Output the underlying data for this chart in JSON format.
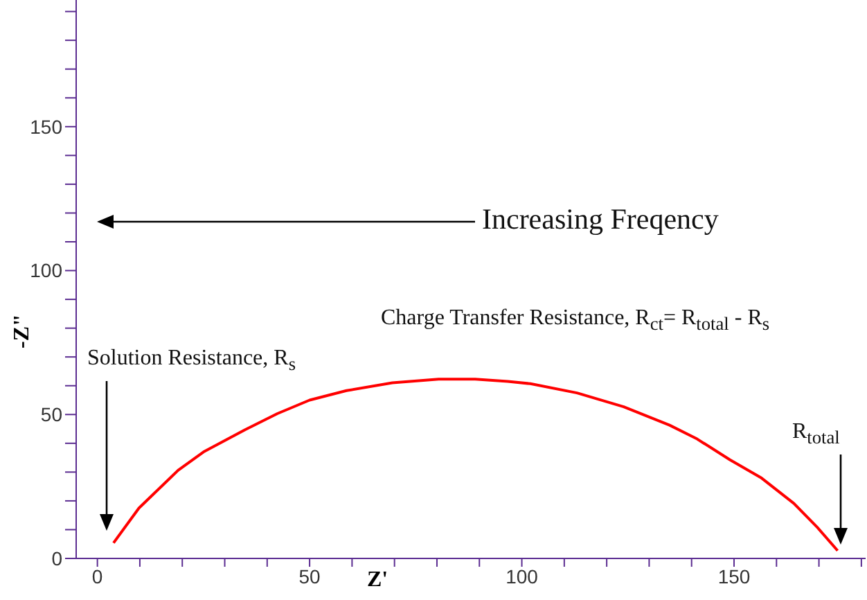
{
  "chart_data": {
    "type": "line",
    "xlabel": "Z'",
    "ylabel": "-Z\"",
    "x": [
      3.8,
      9.8,
      19,
      25,
      34.8,
      42.4,
      50,
      58.7,
      69.5,
      80.4,
      89,
      96.7,
      102,
      113,
      124,
      134.8,
      141.3,
      149,
      156.5,
      164.1,
      169.5,
      174.4
    ],
    "series": [
      {
        "color": "#ff0000",
        "values": [
          5.4,
          17.5,
          30.6,
          37,
          44.7,
          50.3,
          55,
          58.3,
          61,
          62.3,
          62.3,
          61.5,
          60.7,
          57.5,
          52.7,
          46.3,
          41.5,
          34.3,
          27.9,
          19.1,
          11,
          2.7
        ]
      }
    ],
    "xlim": [
      -5,
      181
    ],
    "xticks": [
      0,
      {
        "value": 10,
        "label": null
      },
      {
        "value": 20,
        "label": null
      },
      {
        "value": 30,
        "label": null
      },
      {
        "value": 40,
        "label": null
      },
      50,
      {
        "value": 60,
        "label": null
      },
      {
        "value": 70,
        "label": null
      },
      {
        "value": 80,
        "label": null
      },
      {
        "value": 90,
        "label": null
      },
      100,
      {
        "value": 110,
        "label": null
      },
      {
        "value": 120,
        "label": null
      },
      {
        "value": 130,
        "label": null
      },
      {
        "value": 140,
        "label": null
      },
      150,
      {
        "value": 160,
        "label": null
      },
      {
        "value": 170,
        "label": null
      },
      {
        "value": 180,
        "label": null
      }
    ],
    "ylim": [
      0,
      194
    ],
    "yticks": [
      0,
      {
        "value": 10,
        "label": null
      },
      {
        "value": 20,
        "label": null
      },
      {
        "value": 30,
        "label": null
      },
      {
        "value": 40,
        "label": null
      },
      50,
      {
        "value": 60,
        "label": null
      },
      {
        "value": 70,
        "label": null
      },
      {
        "value": 80,
        "label": null
      },
      {
        "value": 90,
        "label": null
      },
      100,
      {
        "value": 110,
        "label": null
      },
      {
        "value": 120,
        "label": null
      },
      {
        "value": 130,
        "label": null
      },
      {
        "value": 140,
        "label": null
      },
      150,
      {
        "value": 160,
        "label": null
      },
      {
        "value": 170,
        "label": null
      },
      {
        "value": 180,
        "label": null
      },
      {
        "value": 190,
        "label": null
      }
    ],
    "annotations": [
      "Increasing Freqency",
      "Charge Transfer Resistance, R$_{ct}$= R$_{total}$ - R$_{s}$",
      "Solution Resistance, R$_{s}$",
      "R$_{total}$"
    ],
    "grid": false,
    "legend": false,
    "marker": "none",
    "line_style": "solid"
  }
}
